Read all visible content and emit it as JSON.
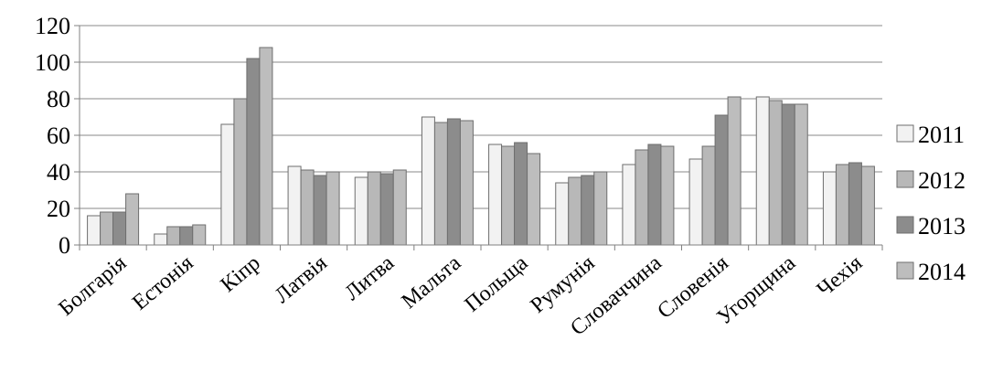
{
  "chart_data": {
    "type": "bar",
    "categories": [
      "Болгарія",
      "Естонія",
      "Кіпр",
      "Латвія",
      "Литва",
      "Мальта",
      "Польща",
      "Румунія",
      "Словаччина",
      "Словенія",
      "Угорщина",
      "Чехія"
    ],
    "series": [
      {
        "name": "2011",
        "color": "#f2f2f2",
        "values": [
          16,
          6,
          66,
          43,
          37,
          70,
          55,
          34,
          44,
          47,
          81,
          40
        ]
      },
      {
        "name": "2012",
        "color": "#b8b8b8",
        "values": [
          18,
          10,
          80,
          41,
          40,
          67,
          54,
          37,
          52,
          54,
          79,
          44
        ]
      },
      {
        "name": "2013",
        "color": "#8c8c8c",
        "values": [
          18,
          10,
          102,
          38,
          39,
          69,
          56,
          38,
          55,
          71,
          77,
          45
        ]
      },
      {
        "name": "2014",
        "color": "#bdbdbd",
        "values": [
          28,
          11,
          108,
          40,
          41,
          68,
          50,
          40,
          54,
          81,
          77,
          43
        ]
      }
    ],
    "title": "",
    "xlabel": "",
    "ylabel": "",
    "ylim": [
      0,
      120
    ],
    "yticks": [
      0,
      20,
      40,
      60,
      80,
      100,
      120
    ],
    "grid": true,
    "legend": "right"
  }
}
